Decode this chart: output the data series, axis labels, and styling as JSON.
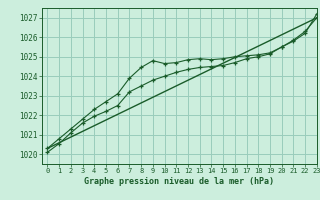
{
  "title": "Graphe pression niveau de la mer (hPa)",
  "bg_color": "#cceedd",
  "grid_color": "#99ccbb",
  "line_color": "#1a5c2a",
  "xlim": [
    -0.5,
    23
  ],
  "ylim": [
    1019.5,
    1027.5
  ],
  "yticks": [
    1020,
    1021,
    1022,
    1023,
    1024,
    1025,
    1026,
    1027
  ],
  "xticks": [
    0,
    1,
    2,
    3,
    4,
    5,
    6,
    7,
    8,
    9,
    10,
    11,
    12,
    13,
    14,
    15,
    16,
    17,
    18,
    19,
    20,
    21,
    22,
    23
  ],
  "line1_x": [
    0,
    1,
    2,
    3,
    4,
    5,
    6,
    7,
    8,
    9,
    10,
    11,
    12,
    13,
    14,
    15,
    16,
    17,
    18,
    19,
    20,
    21,
    22,
    23
  ],
  "line1_y": [
    1020.3,
    1020.8,
    1021.3,
    1021.8,
    1022.3,
    1022.7,
    1023.1,
    1023.9,
    1024.45,
    1024.8,
    1024.65,
    1024.7,
    1024.85,
    1024.9,
    1024.85,
    1024.9,
    1025.0,
    1025.05,
    1025.1,
    1025.2,
    1025.5,
    1025.85,
    1026.3,
    1027.0
  ],
  "line2_x": [
    0,
    1,
    2,
    3,
    4,
    5,
    6,
    7,
    8,
    9,
    10,
    11,
    12,
    13,
    14,
    15,
    16,
    17,
    18,
    19,
    20,
    21,
    22,
    23
  ],
  "line2_y": [
    1020.1,
    1020.55,
    1021.1,
    1021.6,
    1021.95,
    1022.2,
    1022.5,
    1023.2,
    1023.5,
    1023.8,
    1024.0,
    1024.2,
    1024.35,
    1024.45,
    1024.5,
    1024.55,
    1024.7,
    1024.9,
    1025.0,
    1025.15,
    1025.5,
    1025.8,
    1026.2,
    1027.2
  ],
  "line3_x": [
    0,
    23
  ],
  "line3_y": [
    1020.3,
    1027.0
  ]
}
